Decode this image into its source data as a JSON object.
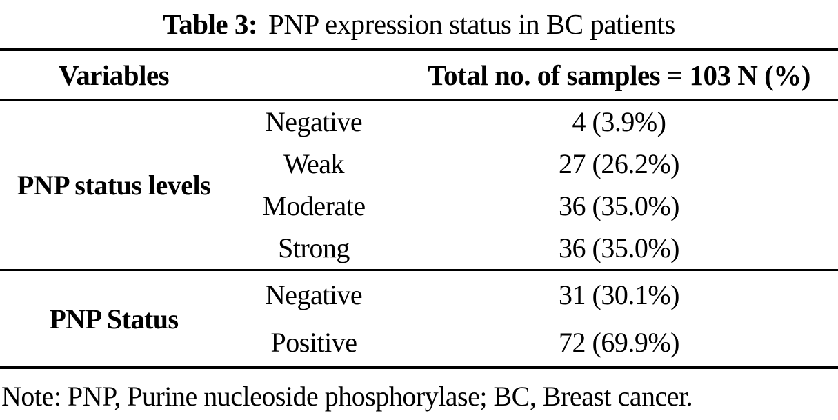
{
  "title": {
    "label": "Table 3:",
    "text": "PNP expression status in BC patients"
  },
  "table": {
    "header": {
      "variables": "Variables",
      "total": "Total no. of samples = 103 N (%)"
    },
    "sections": [
      {
        "group": "PNP status levels",
        "rows": [
          {
            "level": "Negative",
            "value": "4 (3.9%)"
          },
          {
            "level": "Weak",
            "value": "27 (26.2%)"
          },
          {
            "level": "Moderate",
            "value": "36 (35.0%)"
          },
          {
            "level": "Strong",
            "value": "36 (35.0%)"
          }
        ]
      },
      {
        "group": "PNP Status",
        "rows": [
          {
            "level": "Negative",
            "value": "31 (30.1%)"
          },
          {
            "level": "Positive",
            "value": "72 (69.9%)"
          }
        ]
      }
    ]
  },
  "note": "Note: PNP, Purine nucleoside phosphorylase; BC, Breast cancer.",
  "colors": {
    "text": "#000000",
    "background": "#ffffff",
    "rule": "#000000"
  }
}
